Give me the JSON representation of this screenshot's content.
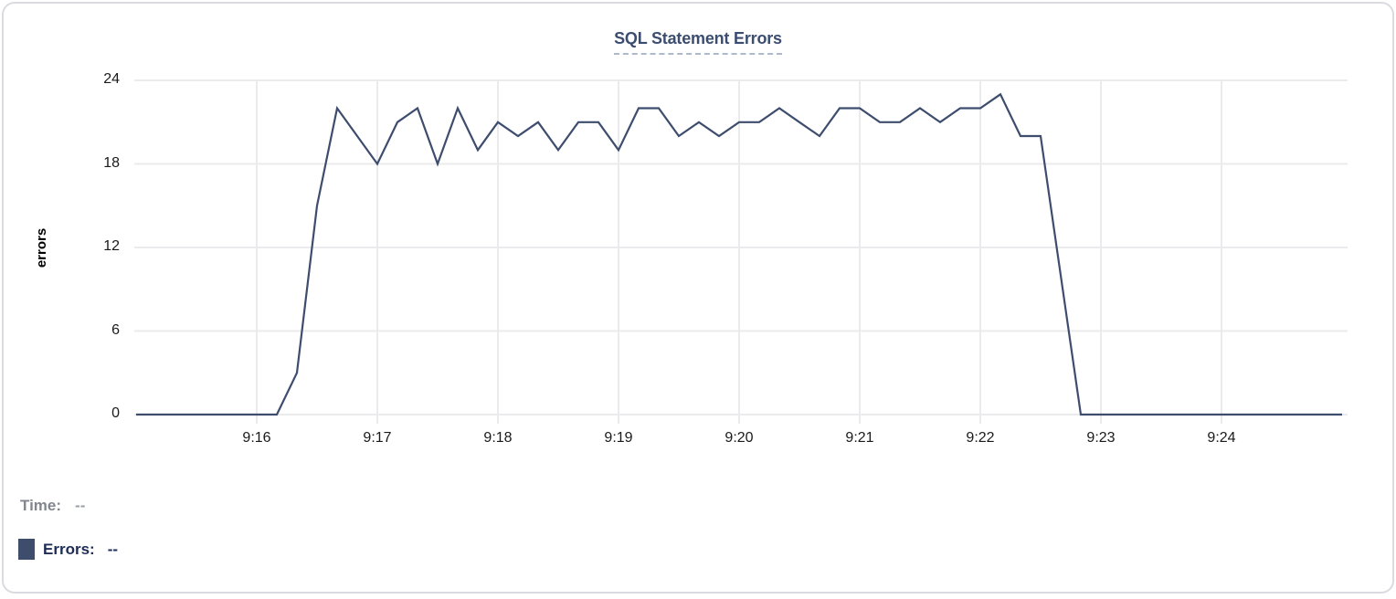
{
  "chart_data": {
    "type": "line",
    "title": "SQL Statement Errors",
    "ylabel": "errors",
    "ylim": [
      0,
      24
    ],
    "y_ticks": [
      0,
      6,
      12,
      18,
      24
    ],
    "x_tick_labels": [
      "9:16",
      "9:17",
      "9:18",
      "9:19",
      "9:20",
      "9:21",
      "9:22",
      "9:23",
      "9:24"
    ],
    "x_tick_indices": [
      6,
      12,
      18,
      24,
      30,
      36,
      42,
      48,
      54
    ],
    "grid": true,
    "legend_position": "bottom-left",
    "x": [
      "9:15:00",
      "9:15:10",
      "9:15:20",
      "9:15:30",
      "9:15:40",
      "9:15:50",
      "9:16:00",
      "9:16:10",
      "9:16:20",
      "9:16:30",
      "9:16:40",
      "9:16:50",
      "9:17:00",
      "9:17:10",
      "9:17:20",
      "9:17:30",
      "9:17:40",
      "9:17:50",
      "9:18:00",
      "9:18:10",
      "9:18:20",
      "9:18:30",
      "9:18:40",
      "9:18:50",
      "9:19:00",
      "9:19:10",
      "9:19:20",
      "9:19:30",
      "9:19:40",
      "9:19:50",
      "9:20:00",
      "9:20:10",
      "9:20:20",
      "9:20:30",
      "9:20:40",
      "9:20:50",
      "9:21:00",
      "9:21:10",
      "9:21:20",
      "9:21:30",
      "9:21:40",
      "9:21:50",
      "9:22:00",
      "9:22:10",
      "9:22:20",
      "9:22:30",
      "9:22:40",
      "9:22:50",
      "9:23:00",
      "9:23:10",
      "9:23:20",
      "9:23:30",
      "9:23:40",
      "9:23:50",
      "9:24:00",
      "9:24:10",
      "9:24:20",
      "9:24:30",
      "9:24:40",
      "9:24:50",
      "9:25:00"
    ],
    "series": [
      {
        "name": "Errors",
        "color": "#3e4d6e",
        "values": [
          0,
          0,
          0,
          0,
          0,
          0,
          0,
          0,
          3,
          15,
          22,
          20,
          18,
          21,
          22,
          18,
          22,
          19,
          21,
          20,
          21,
          19,
          21,
          21,
          19,
          22,
          22,
          20,
          21,
          20,
          21,
          21,
          22,
          21,
          20,
          22,
          22,
          21,
          21,
          22,
          21,
          22,
          22,
          23,
          20,
          20,
          10,
          0,
          0,
          0,
          0,
          0,
          0,
          0,
          0,
          0,
          0,
          0,
          0,
          0,
          0
        ]
      }
    ]
  },
  "readout": {
    "time_label": "Time:",
    "time_value": "--",
    "errors_label": "Errors:",
    "errors_value": "--"
  },
  "colors": {
    "line": "#3e4d6e",
    "grid": "#ebebed",
    "title": "#3b4d71",
    "title_underline": "#aeb9cc",
    "legend_swatch": "#3e4d6c",
    "card_border": "#d9dbe0",
    "time_text": "#82868e",
    "errors_text": "#1d2b55"
  }
}
